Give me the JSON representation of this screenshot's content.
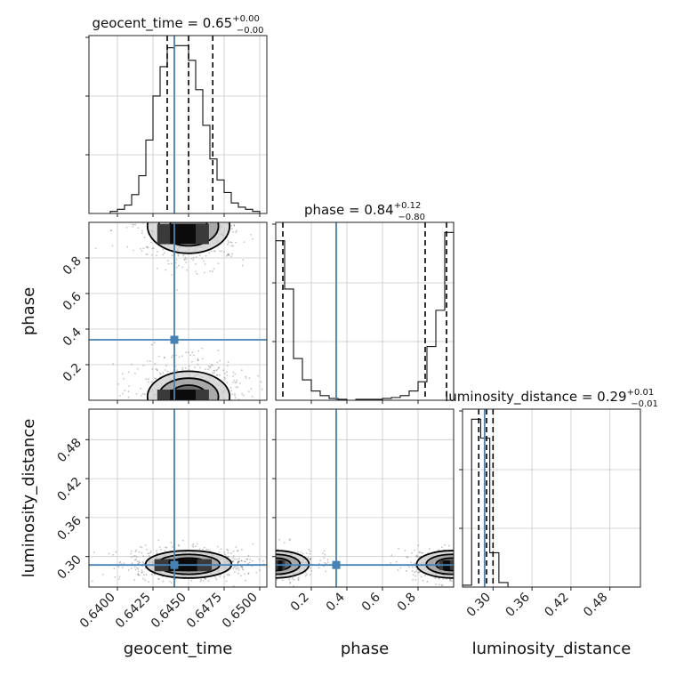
{
  "chart_data": {
    "type": "corner",
    "parameters": [
      "geocent_time",
      "phase",
      "luminosity_distance"
    ],
    "truths": {
      "geocent_time": 0.644,
      "phase": 0.34,
      "luminosity_distance": 0.287
    },
    "titles": [
      {
        "param": "geocent_time",
        "text": "geocent_time = 0.65",
        "plus": "+0.00",
        "minus": "−0.00"
      },
      {
        "param": "phase",
        "text": "phase = 0.84",
        "plus": "+0.12",
        "minus": "−0.80"
      },
      {
        "param": "luminosity_distance",
        "text": "luminosity_distance = 0.29",
        "plus": "+0.01",
        "minus": "−0.01"
      }
    ],
    "ranges": {
      "geocent_time": [
        0.638,
        0.6505
      ],
      "phase": [
        0.0,
        1.0
      ],
      "luminosity_distance": [
        0.253,
        0.527
      ]
    },
    "ticks": {
      "geocent_time": {
        "values": [
          0.64,
          0.6425,
          0.645,
          0.6475,
          0.65
        ],
        "labels": [
          "0.6400",
          "0.6425",
          "0.6450",
          "0.6475",
          "0.6500"
        ]
      },
      "phase": {
        "values": [
          0.2,
          0.4,
          0.6,
          0.8
        ],
        "labels": [
          "0.2",
          "0.4",
          "0.6",
          "0.8"
        ]
      },
      "luminosity_distance": {
        "values": [
          0.3,
          0.36,
          0.42,
          0.48
        ],
        "labels": [
          "0.30",
          "0.36",
          "0.42",
          "0.48"
        ]
      }
    },
    "quantiles": {
      "geocent_time": [
        0.6435,
        0.645,
        0.6467
      ],
      "phase": [
        0.04,
        0.84,
        0.96
      ],
      "luminosity_distance": [
        0.278,
        0.29,
        0.3
      ]
    },
    "histograms": {
      "geocent_time": {
        "edges": [
          0.6395,
          0.64,
          0.6405,
          0.641,
          0.6415,
          0.642,
          0.6425,
          0.643,
          0.6435,
          0.644,
          0.6445,
          0.645,
          0.6455,
          0.646,
          0.6465,
          0.647,
          0.6475,
          0.648,
          0.6485,
          0.649,
          0.6495,
          0.65
        ],
        "counts": [
          1,
          2,
          4,
          9,
          18,
          35,
          56,
          70,
          79,
          80,
          80,
          73,
          59,
          42,
          26,
          16,
          10,
          5,
          3,
          2,
          1
        ]
      },
      "phase": {
        "edges": [
          0.0,
          0.05,
          0.1,
          0.15,
          0.2,
          0.25,
          0.3,
          0.35,
          0.4,
          0.45,
          0.5,
          0.55,
          0.6,
          0.65,
          0.7,
          0.75,
          0.8,
          0.85,
          0.9,
          0.95,
          1.0
        ],
        "counts": [
          172,
          120,
          45,
          22,
          10,
          5,
          2,
          1,
          0,
          1,
          1,
          1,
          2,
          3,
          5,
          10,
          20,
          58,
          97,
          181
        ]
      },
      "luminosity_distance": {
        "edges": [
          0.253,
          0.267,
          0.281,
          0.295,
          0.309,
          0.323
        ],
        "counts": [
          2,
          186,
          165,
          38,
          5
        ]
      }
    },
    "peak_cells": {
      "phase_vs_geocent_time": {
        "x": [
          0.6428,
          0.6464
        ],
        "y_top": [
          0.88,
          0.99
        ],
        "y_bottom": [
          0.0,
          0.06
        ]
      },
      "luminosity_distance_vs_geocent_time": {
        "x": [
          0.6426,
          0.6466
        ],
        "y": [
          0.278,
          0.296
        ]
      },
      "luminosity_distance_vs_phase": {
        "x_left": [
          0.0,
          0.05
        ],
        "x_right": [
          0.92,
          1.0
        ],
        "y": [
          0.28,
          0.294
        ]
      }
    },
    "colors": {
      "truth": "#4682b4",
      "hist": "#111111",
      "grid": "#c8c8c8",
      "scatter": "#555555"
    },
    "grid": true
  }
}
